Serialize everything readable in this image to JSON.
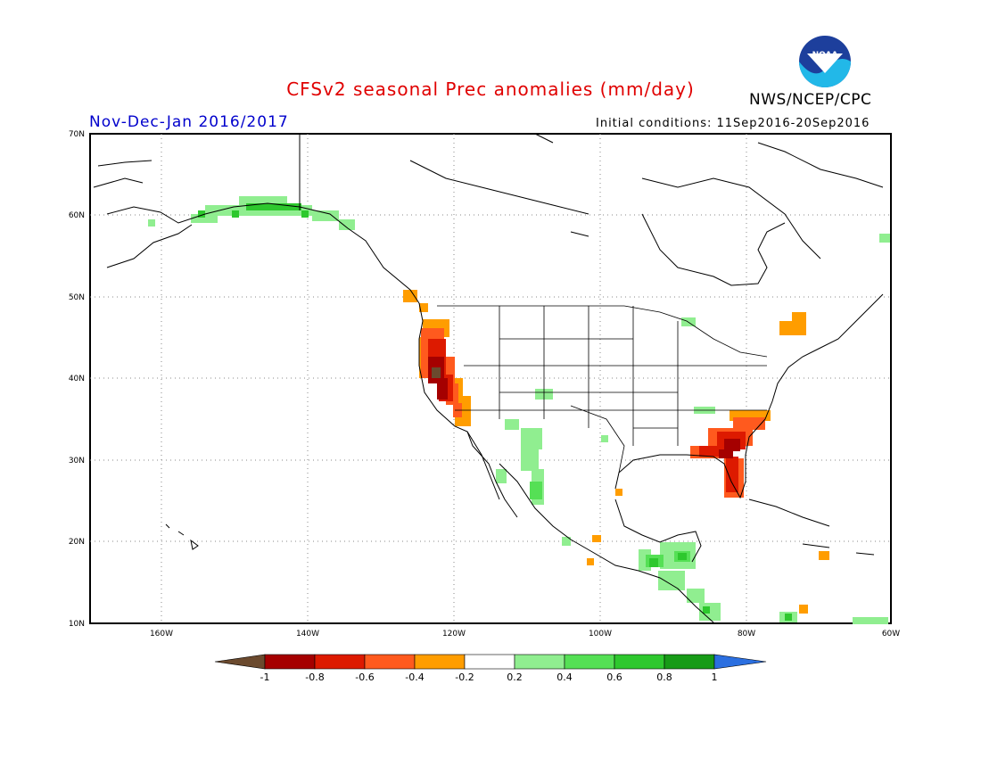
{
  "title": "CFSv2 seasonal Prec anomalies (mm/day)",
  "period": "Nov-Dec-Jan 2016/2017",
  "initial_conditions": "Initial conditions: 11Sep2016-20Sep2016",
  "agency": "NWS/NCEP/CPC",
  "logo_text": "NOAA",
  "lat_labels": [
    "70N",
    "60N",
    "50N",
    "40N",
    "30N",
    "20N",
    "10N"
  ],
  "lon_labels": [
    "160W",
    "140W",
    "120W",
    "100W",
    "80W",
    "60W"
  ],
  "colorbar": {
    "labels": [
      "-1",
      "-0.8",
      "-0.6",
      "-0.4",
      "-0.2",
      "0.2",
      "0.4",
      "0.6",
      "0.8",
      "1"
    ],
    "colors": {
      "below_min": "#6b4a2e",
      "levels": [
        "#a50000",
        "#dd1a00",
        "#ff5a1e",
        "#ff9d00",
        "#ffffff",
        "#90ee90",
        "#55e055",
        "#2ec82e",
        "#179b17"
      ],
      "above_max": "#2b6fe0"
    }
  },
  "colors": {
    "land_outline": "#000000",
    "grid": "#888888",
    "title": "#e00000",
    "period": "#0000cc"
  },
  "anomaly_regions": [
    {
      "region": "California / Oregon coast",
      "sign": "dry",
      "max_mm_day": -1
    },
    {
      "region": "Georgia / Florida / Carolinas",
      "sign": "dry",
      "max_mm_day": -0.8
    },
    {
      "region": "Southern Alaska coast",
      "sign": "wet",
      "max_mm_day": 0.6
    },
    {
      "region": "Northwest Mexico",
      "sign": "wet",
      "max_mm_day": 0.4
    },
    {
      "region": "Central America",
      "sign": "wet",
      "max_mm_day": 0.8
    },
    {
      "region": "Northeast US / Quebec",
      "sign": "dry",
      "max_mm_day": -0.4
    }
  ]
}
